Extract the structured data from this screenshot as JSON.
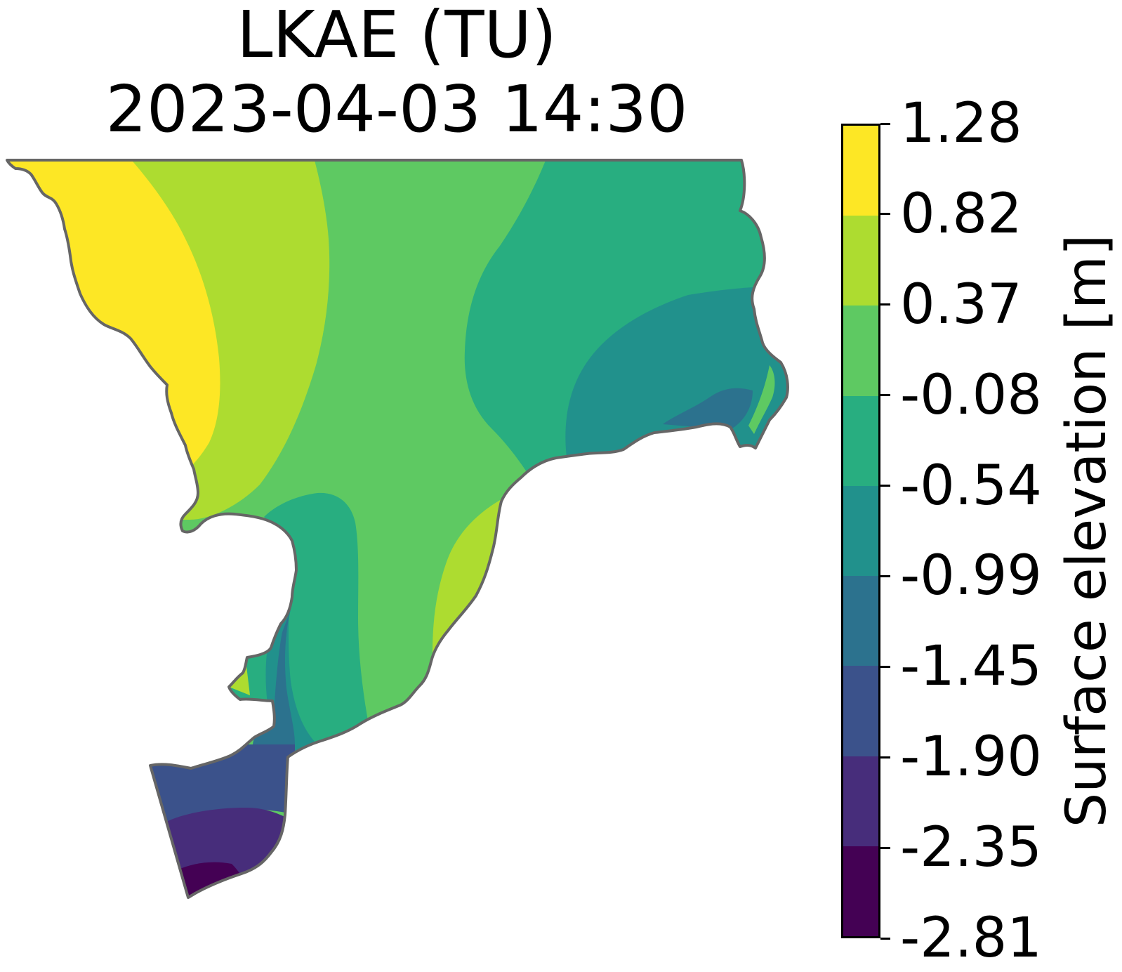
{
  "title": {
    "line1": "LKAE (TU)",
    "line2": "2023-04-03 14:30"
  },
  "colorbar": {
    "label": "Surface elevation [m]",
    "ticks": [
      "1.28",
      "0.82",
      "0.37",
      "-0.08",
      "-0.54",
      "-0.99",
      "-1.45",
      "-1.90",
      "-2.35",
      "-2.81"
    ],
    "colors": [
      "#fde725",
      "#addc30",
      "#5ec962",
      "#28ae80",
      "#21918c",
      "#2c728e",
      "#3b528b",
      "#472d7b",
      "#440154"
    ]
  },
  "map": {
    "outline_color": "#666666",
    "background_color": "#ffffff"
  }
}
